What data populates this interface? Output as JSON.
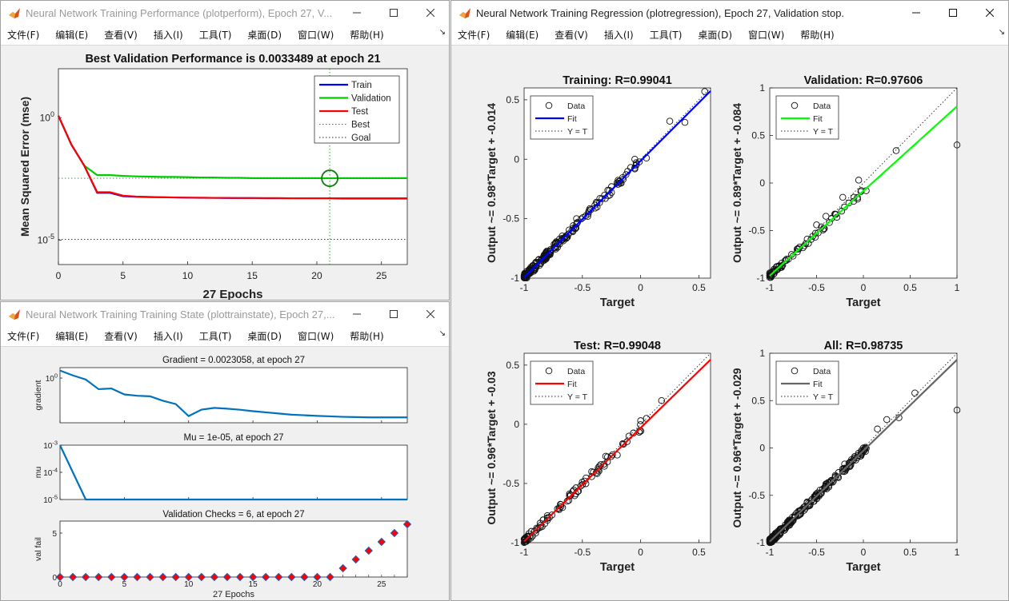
{
  "windows": {
    "perform": {
      "title": "Neural Network Training Performance (plotperform), Epoch 27, V...",
      "menus": [
        "文件(F)",
        "编辑(E)",
        "查看(V)",
        "插入(I)",
        "工具(T)",
        "桌面(D)",
        "窗口(W)",
        "帮助(H)"
      ]
    },
    "trainstate": {
      "title": "Neural Network Training Training State (plottrainstate), Epoch 27,...",
      "menus": [
        "文件(F)",
        "编辑(E)",
        "查看(V)",
        "插入(I)",
        "工具(T)",
        "桌面(D)",
        "窗口(W)",
        "帮助(H)"
      ]
    },
    "regression": {
      "title": "Neural Network Training Regression (plotregression), Epoch 27, Validation stop.",
      "menus": [
        "文件(F)",
        "编辑(E)",
        "查看(V)",
        "插入(I)",
        "工具(T)",
        "桌面(D)",
        "窗口(W)",
        "帮助(H)"
      ]
    }
  },
  "colors": {
    "train": "#0000ff",
    "validation": "#00cc00",
    "test": "#ff0000",
    "all": "#666666",
    "state_line": "#0072bd",
    "valfail_marker": "#ff0000",
    "valfail_edge": "#1f5fbf"
  },
  "chart_data": [
    {
      "id": "performance",
      "type": "line",
      "title": "Best Validation Performance is 0.0033489 at epoch 21",
      "xlabel": "27 Epochs",
      "ylabel": "Mean Squared Error  (mse)",
      "yscale": "log",
      "xlim": [
        0,
        27
      ],
      "ylim_log10": [
        -6,
        2
      ],
      "x_ticks": [
        0,
        5,
        10,
        15,
        20,
        25
      ],
      "y_ticks": [
        {
          "exp": 0,
          "label": "10",
          "sup": "0"
        },
        {
          "exp": -5,
          "label": "10",
          "sup": "-5"
        }
      ],
      "legend": [
        "Train",
        "Validation",
        "Test",
        "Best",
        "Goal"
      ],
      "legend_position": "top-right",
      "best_epoch": 21,
      "best_value": 0.0033489,
      "goal": 1.07e-05,
      "series": [
        {
          "name": "Train",
          "x": [
            0,
            1,
            2,
            3,
            4,
            5,
            6,
            7,
            8,
            9,
            10,
            11,
            12,
            13,
            14,
            15,
            16,
            17,
            18,
            19,
            20,
            21,
            22,
            23,
            24,
            25,
            26,
            27
          ],
          "values": [
            1.2,
            0.08,
            0.011,
            0.00085,
            0.00085,
            0.00062,
            0.00059,
            0.00057,
            0.00056,
            0.00055,
            0.00054,
            0.00053,
            0.00053,
            0.00052,
            0.00052,
            0.00052,
            0.00051,
            0.00051,
            0.00051,
            0.00051,
            0.00051,
            0.00051,
            0.0005,
            0.0005,
            0.0005,
            0.0005,
            0.0005,
            0.0005
          ]
        },
        {
          "name": "Validation",
          "x": [
            0,
            1,
            2,
            3,
            4,
            5,
            6,
            7,
            8,
            9,
            10,
            11,
            12,
            13,
            14,
            15,
            16,
            17,
            18,
            19,
            20,
            21,
            22,
            23,
            24,
            25,
            26,
            27
          ],
          "values": [
            1.2,
            0.08,
            0.011,
            0.0045,
            0.0045,
            0.0042,
            0.004,
            0.0039,
            0.0038,
            0.0038,
            0.0037,
            0.0036,
            0.0036,
            0.0035,
            0.0035,
            0.0034,
            0.0034,
            0.0034,
            0.0034,
            0.0034,
            0.0034,
            0.0033489,
            0.0034,
            0.0034,
            0.0034,
            0.0034,
            0.0034,
            0.0034
          ]
        },
        {
          "name": "Test",
          "x": [
            0,
            1,
            2,
            3,
            4,
            5,
            6,
            7,
            8,
            9,
            10,
            11,
            12,
            13,
            14,
            15,
            16,
            17,
            18,
            19,
            20,
            21,
            22,
            23,
            24,
            25,
            26,
            27
          ],
          "values": [
            1.2,
            0.08,
            0.011,
            0.0009,
            0.0009,
            0.00065,
            0.0006,
            0.00058,
            0.00056,
            0.00055,
            0.00054,
            0.00054,
            0.00053,
            0.00053,
            0.00052,
            0.00052,
            0.00052,
            0.00052,
            0.00051,
            0.00051,
            0.00051,
            0.00051,
            0.00051,
            0.00051,
            0.00051,
            0.00051,
            0.00051,
            0.00051
          ]
        }
      ]
    },
    {
      "id": "gradient",
      "type": "line",
      "title": "Gradient = 0.0023058, at epoch 27",
      "ylabel": "gradient",
      "yscale": "log",
      "xlim": [
        0,
        27
      ],
      "ylim_log10": [
        -3,
        0.7
      ],
      "y_ticks": [
        {
          "exp": 0,
          "label": "10",
          "sup": "0"
        }
      ],
      "x": [
        0,
        1,
        2,
        3,
        4,
        5,
        6,
        7,
        8,
        9,
        10,
        11,
        12,
        13,
        14,
        15,
        16,
        17,
        18,
        19,
        20,
        21,
        22,
        23,
        24,
        25,
        26,
        27
      ],
      "values": [
        3.2,
        1.5,
        0.8,
        0.18,
        0.2,
        0.08,
        0.065,
        0.06,
        0.03,
        0.018,
        0.0028,
        0.0076,
        0.01,
        0.0088,
        0.0075,
        0.006,
        0.005,
        0.0042,
        0.0035,
        0.0032,
        0.0029,
        0.0027,
        0.0025,
        0.0024,
        0.0023,
        0.0023,
        0.0023,
        0.0023058
      ]
    },
    {
      "id": "mu",
      "type": "line",
      "title": "Mu = 1e-05, at epoch 27",
      "ylabel": "mu",
      "yscale": "log",
      "xlim": [
        0,
        27
      ],
      "ylim_log10": [
        -5,
        -3
      ],
      "y_ticks": [
        {
          "exp": -3,
          "label": "10",
          "sup": "-3"
        },
        {
          "exp": -4,
          "label": "10",
          "sup": "-4"
        },
        {
          "exp": -5,
          "label": "10",
          "sup": "-5"
        }
      ],
      "x": [
        0,
        1,
        2,
        27
      ],
      "values": [
        0.001,
        0.0001,
        1e-05,
        1e-05
      ]
    },
    {
      "id": "valfail",
      "type": "scatter",
      "title": "Validation Checks = 6, at epoch 27",
      "xlabel": "27 Epochs",
      "ylabel": "val fail",
      "xlim": [
        0,
        27
      ],
      "ylim": [
        0,
        6
      ],
      "x_ticks": [
        0,
        5,
        10,
        15,
        20,
        25
      ],
      "x_tick_labels_visible": [
        "0",
        "5",
        "10",
        "15",
        "20",
        "25"
      ],
      "y_ticks": [
        0,
        5
      ],
      "x": [
        0,
        1,
        2,
        3,
        4,
        5,
        6,
        7,
        8,
        9,
        10,
        11,
        12,
        13,
        14,
        15,
        16,
        17,
        18,
        19,
        20,
        21,
        22,
        23,
        24,
        25,
        26,
        27
      ],
      "values": [
        0,
        0,
        0,
        0,
        0,
        0,
        0,
        0,
        0,
        0,
        0,
        0,
        0,
        0,
        0,
        0,
        0,
        0,
        0,
        0,
        0,
        0,
        1,
        2,
        3,
        4,
        5,
        6
      ]
    },
    {
      "id": "reg-training",
      "type": "scatter",
      "title": "Training: R=0.99041",
      "xlabel": "Target",
      "ylabel": "Output ~= 0.98*Target + -0.014",
      "xlim": [
        -1,
        0.6
      ],
      "ylim": [
        -1,
        0.6
      ],
      "x_ticks": [
        -1,
        -0.5,
        0,
        0.5
      ],
      "x_tick_labels": [
        "-1",
        "-0.5",
        "0",
        "0.5"
      ],
      "y_ticks": [
        -1,
        -0.5,
        0,
        0.5
      ],
      "y_tick_labels": [
        "-1",
        "-0.5",
        "0",
        "0.5"
      ],
      "fit": {
        "slope": 0.98,
        "intercept": -0.014,
        "color": "#0000ff"
      },
      "legend": [
        "Data",
        "Fit",
        "Y = T"
      ],
      "sample_points": [
        [
          -0.98,
          -0.99
        ],
        [
          -0.92,
          -0.93
        ],
        [
          -0.85,
          -0.84
        ],
        [
          -0.8,
          -0.81
        ],
        [
          -0.72,
          -0.7
        ],
        [
          -0.62,
          -0.63
        ],
        [
          -0.55,
          -0.5
        ],
        [
          -0.45,
          -0.46
        ],
        [
          -0.35,
          -0.33
        ],
        [
          -0.25,
          -0.28
        ],
        [
          -0.15,
          -0.17
        ],
        [
          -0.05,
          0.0
        ],
        [
          0.05,
          0.01
        ],
        [
          0.25,
          0.32
        ],
        [
          0.38,
          0.31
        ],
        [
          0.55,
          0.57
        ]
      ]
    },
    {
      "id": "reg-validation",
      "type": "scatter",
      "title": "Validation: R=0.97606",
      "xlabel": "Target",
      "ylabel": "Output ~= 0.89*Target + -0.084",
      "xlim": [
        -1,
        1
      ],
      "ylim": [
        -1,
        1
      ],
      "x_ticks": [
        -1,
        -0.5,
        0,
        0.5,
        1
      ],
      "x_tick_labels": [
        "-1",
        "-0.5",
        "0",
        "0.5",
        "1"
      ],
      "y_ticks": [
        -1,
        -0.5,
        0,
        0.5,
        1
      ],
      "y_tick_labels": [
        "-1",
        "-0.5",
        "0",
        "0.5",
        "1"
      ],
      "fit": {
        "slope": 0.89,
        "intercept": -0.084,
        "color": "#00ff00"
      },
      "legend": [
        "Data",
        "Fit",
        "Y = T"
      ],
      "sample_points": [
        [
          -0.98,
          -0.97
        ],
        [
          -0.9,
          -0.87
        ],
        [
          -0.82,
          -0.8
        ],
        [
          -0.7,
          -0.69
        ],
        [
          -0.6,
          -0.59
        ],
        [
          -0.5,
          -0.44
        ],
        [
          -0.4,
          -0.35
        ],
        [
          -0.3,
          -0.33
        ],
        [
          -0.22,
          -0.15
        ],
        [
          -0.1,
          -0.15
        ],
        [
          -0.05,
          0.03
        ],
        [
          0.35,
          0.34
        ],
        [
          1.0,
          0.4
        ]
      ]
    },
    {
      "id": "reg-test",
      "type": "scatter",
      "title": "Test: R=0.99048",
      "xlabel": "Target",
      "ylabel": "Output ~= 0.96*Target + -0.03",
      "xlim": [
        -1,
        0.6
      ],
      "ylim": [
        -1,
        0.6
      ],
      "x_ticks": [
        -1,
        -0.5,
        0,
        0.5
      ],
      "x_tick_labels": [
        "-1",
        "-0.5",
        "0",
        "0.5"
      ],
      "y_ticks": [
        -1,
        -0.5,
        0,
        0.5
      ],
      "y_tick_labels": [
        "-1",
        "-0.5",
        "0",
        "0.5"
      ],
      "fit": {
        "slope": 0.96,
        "intercept": -0.03,
        "color": "#ff0000"
      },
      "legend": [
        "Data",
        "Fit",
        "Y = T"
      ],
      "sample_points": [
        [
          -0.97,
          -0.97
        ],
        [
          -0.88,
          -0.88
        ],
        [
          -0.8,
          -0.79
        ],
        [
          -0.7,
          -0.71
        ],
        [
          -0.6,
          -0.6
        ],
        [
          -0.5,
          -0.51
        ],
        [
          -0.42,
          -0.4
        ],
        [
          -0.3,
          -0.27
        ],
        [
          -0.2,
          -0.26
        ],
        [
          -0.1,
          -0.1
        ],
        [
          0.0,
          0.03
        ],
        [
          0.05,
          0.05
        ],
        [
          0.18,
          0.2
        ]
      ]
    },
    {
      "id": "reg-all",
      "type": "scatter",
      "title": "All: R=0.98735",
      "xlabel": "Target",
      "ylabel": "Output ~= 0.96*Target + -0.029",
      "xlim": [
        -1,
        1
      ],
      "ylim": [
        -1,
        1
      ],
      "x_ticks": [
        -1,
        -0.5,
        0,
        0.5,
        1
      ],
      "x_tick_labels": [
        "-1",
        "-0.5",
        "0",
        "0.5",
        "1"
      ],
      "y_ticks": [
        -1,
        -0.5,
        0,
        0.5,
        1
      ],
      "y_tick_labels": [
        "-1",
        "-0.5",
        "0",
        "0.5",
        "1"
      ],
      "fit": {
        "slope": 0.96,
        "intercept": -0.029,
        "color": "#666666"
      },
      "legend": [
        "Data",
        "Fit",
        "Y = T"
      ],
      "sample_points": [
        [
          -0.98,
          -0.99
        ],
        [
          -0.9,
          -0.9
        ],
        [
          -0.8,
          -0.78
        ],
        [
          -0.7,
          -0.71
        ],
        [
          -0.6,
          -0.57
        ],
        [
          -0.5,
          -0.5
        ],
        [
          -0.4,
          -0.38
        ],
        [
          -0.3,
          -0.29
        ],
        [
          -0.2,
          -0.17
        ],
        [
          -0.1,
          -0.12
        ],
        [
          0.0,
          0.0
        ],
        [
          0.15,
          0.2
        ],
        [
          0.25,
          0.3
        ],
        [
          0.38,
          0.32
        ],
        [
          0.55,
          0.58
        ],
        [
          1.0,
          0.4
        ]
      ]
    }
  ]
}
